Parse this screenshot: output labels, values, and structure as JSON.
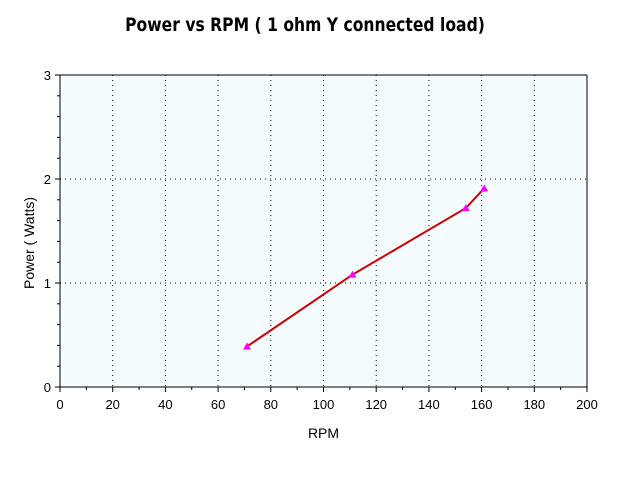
{
  "chart_data": {
    "type": "line",
    "title": "Power vs RPM ( 1 ohm Y connected load)",
    "xlabel": "RPM",
    "ylabel": "Power ( Watts)",
    "xlim": [
      0,
      200
    ],
    "ylim": [
      0,
      3
    ],
    "x_ticks": [
      0,
      20,
      40,
      60,
      80,
      100,
      120,
      140,
      160,
      180,
      200
    ],
    "y_ticks": [
      0,
      1,
      2,
      3
    ],
    "grid": true,
    "legend": "none",
    "plot_background": "#f5fcff",
    "series": [
      {
        "line_color": "#cc0000",
        "marker_color": "#ff00ff",
        "marker": "triangle",
        "x": [
          71,
          111,
          154,
          161
        ],
        "y": [
          0.39,
          1.08,
          1.72,
          1.91
        ]
      }
    ]
  }
}
